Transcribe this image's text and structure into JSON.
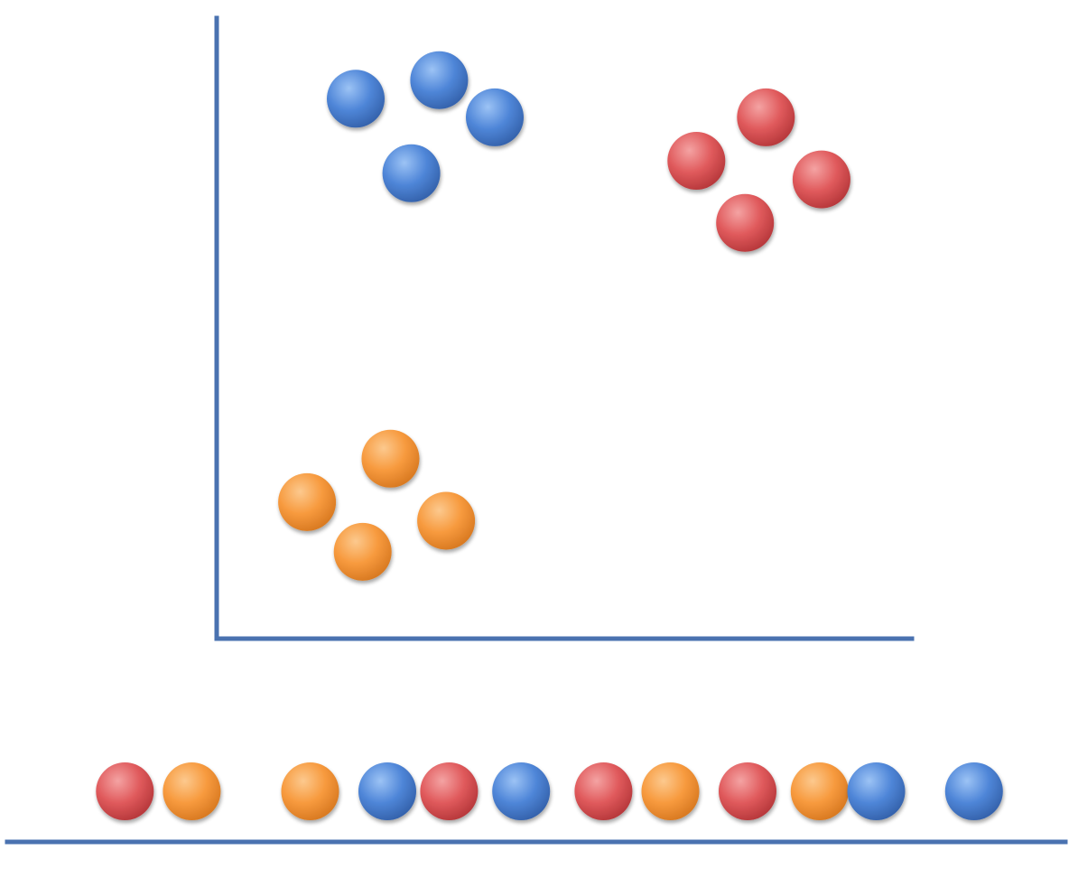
{
  "colors": {
    "axis": "#4a72b0",
    "blue": "#4f86d8",
    "red": "#e05a5c",
    "orange": "#f79a3e"
  },
  "chart_data": [
    {
      "type": "scatter",
      "title": "",
      "xlabel": "",
      "ylabel": "",
      "xlim": [
        0,
        10
      ],
      "ylim": [
        0,
        10
      ],
      "grid": false,
      "series": [
        {
          "color": "blue",
          "points": [
            [
              2.0,
              8.7
            ],
            [
              3.2,
              9.0
            ],
            [
              4.0,
              8.4
            ],
            [
              2.8,
              7.5
            ]
          ]
        },
        {
          "color": "red",
          "points": [
            [
              6.9,
              7.7
            ],
            [
              7.9,
              8.4
            ],
            [
              8.7,
              7.4
            ],
            [
              7.6,
              6.7
            ]
          ]
        },
        {
          "color": "orange",
          "points": [
            [
              1.3,
              2.2
            ],
            [
              2.5,
              2.9
            ],
            [
              3.3,
              1.9
            ],
            [
              2.1,
              1.4
            ]
          ]
        }
      ]
    },
    {
      "type": "scatter",
      "title": "",
      "xlabel": "",
      "ylabel": "",
      "dimension": "1d",
      "xlim": [
        0,
        10
      ],
      "points": [
        {
          "x": 0.95,
          "color": "red"
        },
        {
          "x": 1.6,
          "color": "orange"
        },
        {
          "x": 2.75,
          "color": "orange"
        },
        {
          "x": 3.5,
          "color": "blue"
        },
        {
          "x": 4.1,
          "color": "red"
        },
        {
          "x": 4.8,
          "color": "blue"
        },
        {
          "x": 5.6,
          "color": "red"
        },
        {
          "x": 6.25,
          "color": "orange"
        },
        {
          "x": 7.0,
          "color": "red"
        },
        {
          "x": 7.7,
          "color": "orange"
        },
        {
          "x": 8.25,
          "color": "blue"
        },
        {
          "x": 9.2,
          "color": "blue"
        }
      ]
    }
  ]
}
